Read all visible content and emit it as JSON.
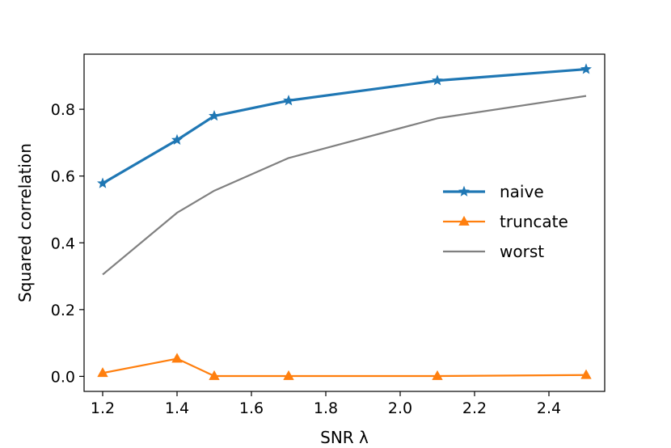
{
  "chart_data": {
    "type": "line",
    "title": "",
    "xlabel": "SNR λ",
    "ylabel": "Squared correlation",
    "xlim": [
      1.15,
      2.55
    ],
    "ylim": [
      -0.045,
      0.965
    ],
    "xticks": [
      1.2,
      1.4,
      1.6,
      1.8,
      2.0,
      2.2,
      2.4
    ],
    "xtick_labels": [
      "1.2",
      "1.4",
      "1.6",
      "1.8",
      "2.0",
      "2.2",
      "2.4"
    ],
    "yticks": [
      0.0,
      0.2,
      0.4,
      0.6,
      0.8
    ],
    "ytick_labels": [
      "0.0",
      "0.2",
      "0.4",
      "0.6",
      "0.8"
    ],
    "grid": false,
    "legend_position": "center-right",
    "series": [
      {
        "name": "naive",
        "color": "#1f77b4",
        "marker": "star",
        "x": [
          1.2,
          1.4,
          1.5,
          1.7,
          2.1,
          2.5
        ],
        "y": [
          0.578,
          0.708,
          0.78,
          0.826,
          0.886,
          0.92
        ]
      },
      {
        "name": "truncate",
        "color": "#ff7f0e",
        "marker": "triangle",
        "x": [
          1.2,
          1.4,
          1.5,
          1.7,
          2.1,
          2.5
        ],
        "y": [
          0.01,
          0.053,
          0.001,
          0.001,
          0.001,
          0.004
        ]
      },
      {
        "name": "worst",
        "color": "#808080",
        "marker": "none",
        "x": [
          1.2,
          1.4,
          1.5,
          1.7,
          2.1,
          2.5
        ],
        "y": [
          0.305,
          0.49,
          0.556,
          0.654,
          0.773,
          0.84
        ]
      }
    ]
  }
}
